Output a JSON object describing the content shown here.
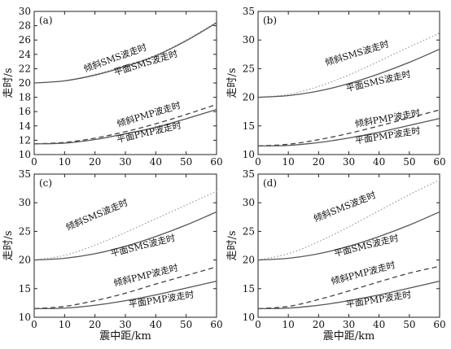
{
  "chart_data": [
    {
      "panel": "(a)",
      "type": "line",
      "xlabel": "",
      "ylabel": "走时/s",
      "xlim": [
        0,
        60
      ],
      "ylim": [
        10,
        30
      ],
      "xticks": [
        0,
        10,
        20,
        30,
        40,
        50,
        60
      ],
      "yticks": [
        10,
        12,
        14,
        16,
        18,
        20,
        22,
        24,
        26,
        28,
        30
      ],
      "x": [
        0,
        10,
        20,
        30,
        40,
        50,
        60
      ],
      "series": [
        {
          "name": "倾斜SMS波走时",
          "style": "dotted",
          "values": [
            20.0,
            20.3,
            21.2,
            22.4,
            23.9,
            26.0,
            28.5
          ]
        },
        {
          "name": "平面SMS波走时",
          "style": "solid",
          "values": [
            20.0,
            20.3,
            21.1,
            22.3,
            23.8,
            25.9,
            28.4
          ]
        },
        {
          "name": "倾斜PMP波走时",
          "style": "dashed",
          "values": [
            11.5,
            11.7,
            12.3,
            13.2,
            14.3,
            15.6,
            17.0
          ]
        },
        {
          "name": "平面PMP波走时",
          "style": "solid",
          "values": [
            11.5,
            11.6,
            12.1,
            12.9,
            13.8,
            15.0,
            16.3
          ]
        }
      ],
      "labels": [
        {
          "text": "倾斜SMS波走时",
          "x": 27,
          "y": 23.1,
          "angle": -20
        },
        {
          "text": "平面SMS波走时",
          "x": 37,
          "y": 22.4,
          "angle": -17
        },
        {
          "text": "倾斜PMP波走时",
          "x": 38,
          "y": 15.2,
          "angle": -17
        },
        {
          "text": "平面PMP波走时",
          "x": 38,
          "y": 12.7,
          "angle": -13
        }
      ]
    },
    {
      "panel": "(b)",
      "type": "line",
      "xlabel": "",
      "ylabel": "走时/s",
      "xlim": [
        0,
        60
      ],
      "ylim": [
        10,
        35
      ],
      "xticks": [
        0,
        10,
        20,
        30,
        40,
        50,
        60
      ],
      "yticks": [
        10,
        15,
        20,
        25,
        30,
        35
      ],
      "x": [
        0,
        10,
        20,
        30,
        40,
        50,
        60
      ],
      "series": [
        {
          "name": "倾斜SMS波走时",
          "style": "dotted",
          "values": [
            20.0,
            20.5,
            21.9,
            23.9,
            26.3,
            28.8,
            31.2
          ]
        },
        {
          "name": "平面SMS波走时",
          "style": "solid",
          "values": [
            20.0,
            20.3,
            21.1,
            22.4,
            24.1,
            26.1,
            28.4
          ]
        },
        {
          "name": "倾斜PMP波走时",
          "style": "dashed",
          "values": [
            11.5,
            11.8,
            12.6,
            13.7,
            15.0,
            16.4,
            17.8
          ]
        },
        {
          "name": "平面PMP波走时",
          "style": "solid",
          "values": [
            11.5,
            11.6,
            12.1,
            12.9,
            13.9,
            15.1,
            16.3
          ]
        }
      ],
      "labels": [
        {
          "text": "倾斜SMS波走时",
          "x": 33,
          "y": 27.2,
          "angle": -17
        },
        {
          "text": "平面SMS波走时",
          "x": 40,
          "y": 22.3,
          "angle": -13
        },
        {
          "text": "倾斜PMP波走时",
          "x": 43,
          "y": 15.8,
          "angle": -10
        },
        {
          "text": "平面PMP波走时",
          "x": 43,
          "y": 12.8,
          "angle": -9
        }
      ]
    },
    {
      "panel": "(c)",
      "type": "line",
      "xlabel": "震中距/km",
      "ylabel": "走时/s",
      "xlim": [
        0,
        60
      ],
      "ylim": [
        10,
        35
      ],
      "xticks": [
        0,
        10,
        20,
        30,
        40,
        50,
        60
      ],
      "yticks": [
        10,
        15,
        20,
        25,
        30,
        35
      ],
      "x": [
        0,
        10,
        20,
        30,
        40,
        50,
        60
      ],
      "series": [
        {
          "name": "倾斜SMS波走时",
          "style": "dotted",
          "values": [
            20.0,
            20.8,
            22.6,
            24.8,
            27.2,
            29.6,
            32.0
          ]
        },
        {
          "name": "平面SMS波走时",
          "style": "solid",
          "values": [
            20.0,
            20.3,
            21.1,
            22.4,
            24.1,
            26.1,
            28.4
          ]
        },
        {
          "name": "倾斜PMP波走时",
          "style": "dashed",
          "values": [
            11.5,
            11.9,
            12.9,
            14.2,
            15.8,
            17.3,
            18.8
          ]
        },
        {
          "name": "平面PMP波走时",
          "style": "solid",
          "values": [
            11.5,
            11.6,
            12.1,
            12.9,
            13.9,
            15.1,
            16.3
          ]
        }
      ],
      "labels": [
        {
          "text": "倾斜SMS波走时",
          "x": 21,
          "y": 27.4,
          "angle": -23
        },
        {
          "text": "平面SMS波走时",
          "x": 36,
          "y": 22.0,
          "angle": -14
        },
        {
          "text": "倾斜PMP波走时",
          "x": 37,
          "y": 16.8,
          "angle": -14
        },
        {
          "text": "平面PMP波走时",
          "x": 42,
          "y": 12.6,
          "angle": -9
        }
      ]
    },
    {
      "panel": "(d)",
      "type": "line",
      "xlabel": "震中距/km",
      "ylabel": "走时/s",
      "xlim": [
        0,
        60
      ],
      "ylim": [
        10,
        35
      ],
      "xticks": [
        0,
        10,
        20,
        30,
        40,
        50,
        60
      ],
      "yticks": [
        10,
        15,
        20,
        25,
        30,
        35
      ],
      "x": [
        0,
        10,
        20,
        30,
        40,
        50,
        60
      ],
      "series": [
        {
          "name": "倾斜SMS波走时",
          "style": "dotted",
          "values": [
            20.0,
            21.1,
            23.2,
            25.8,
            28.6,
            31.4,
            34.0
          ]
        },
        {
          "name": "平面SMS波走时",
          "style": "solid",
          "values": [
            20.0,
            20.3,
            21.1,
            22.4,
            24.1,
            26.1,
            28.4
          ]
        },
        {
          "name": "倾斜PMP波走时",
          "style": "dashed",
          "values": [
            11.5,
            11.9,
            13.1,
            14.6,
            16.2,
            17.7,
            18.9
          ]
        },
        {
          "name": "平面PMP波走时",
          "style": "solid",
          "values": [
            11.5,
            11.6,
            12.1,
            12.9,
            13.9,
            15.1,
            16.3
          ]
        }
      ],
      "labels": [
        {
          "text": "倾斜SMS波走时",
          "x": 29,
          "y": 28.8,
          "angle": -22
        },
        {
          "text": "平面SMS波走时",
          "x": 36,
          "y": 22.0,
          "angle": -14
        },
        {
          "text": "倾斜PMP波走时",
          "x": 35,
          "y": 17.2,
          "angle": -15
        },
        {
          "text": "平面PMP波走时",
          "x": 40,
          "y": 12.6,
          "angle": -9
        }
      ]
    }
  ]
}
